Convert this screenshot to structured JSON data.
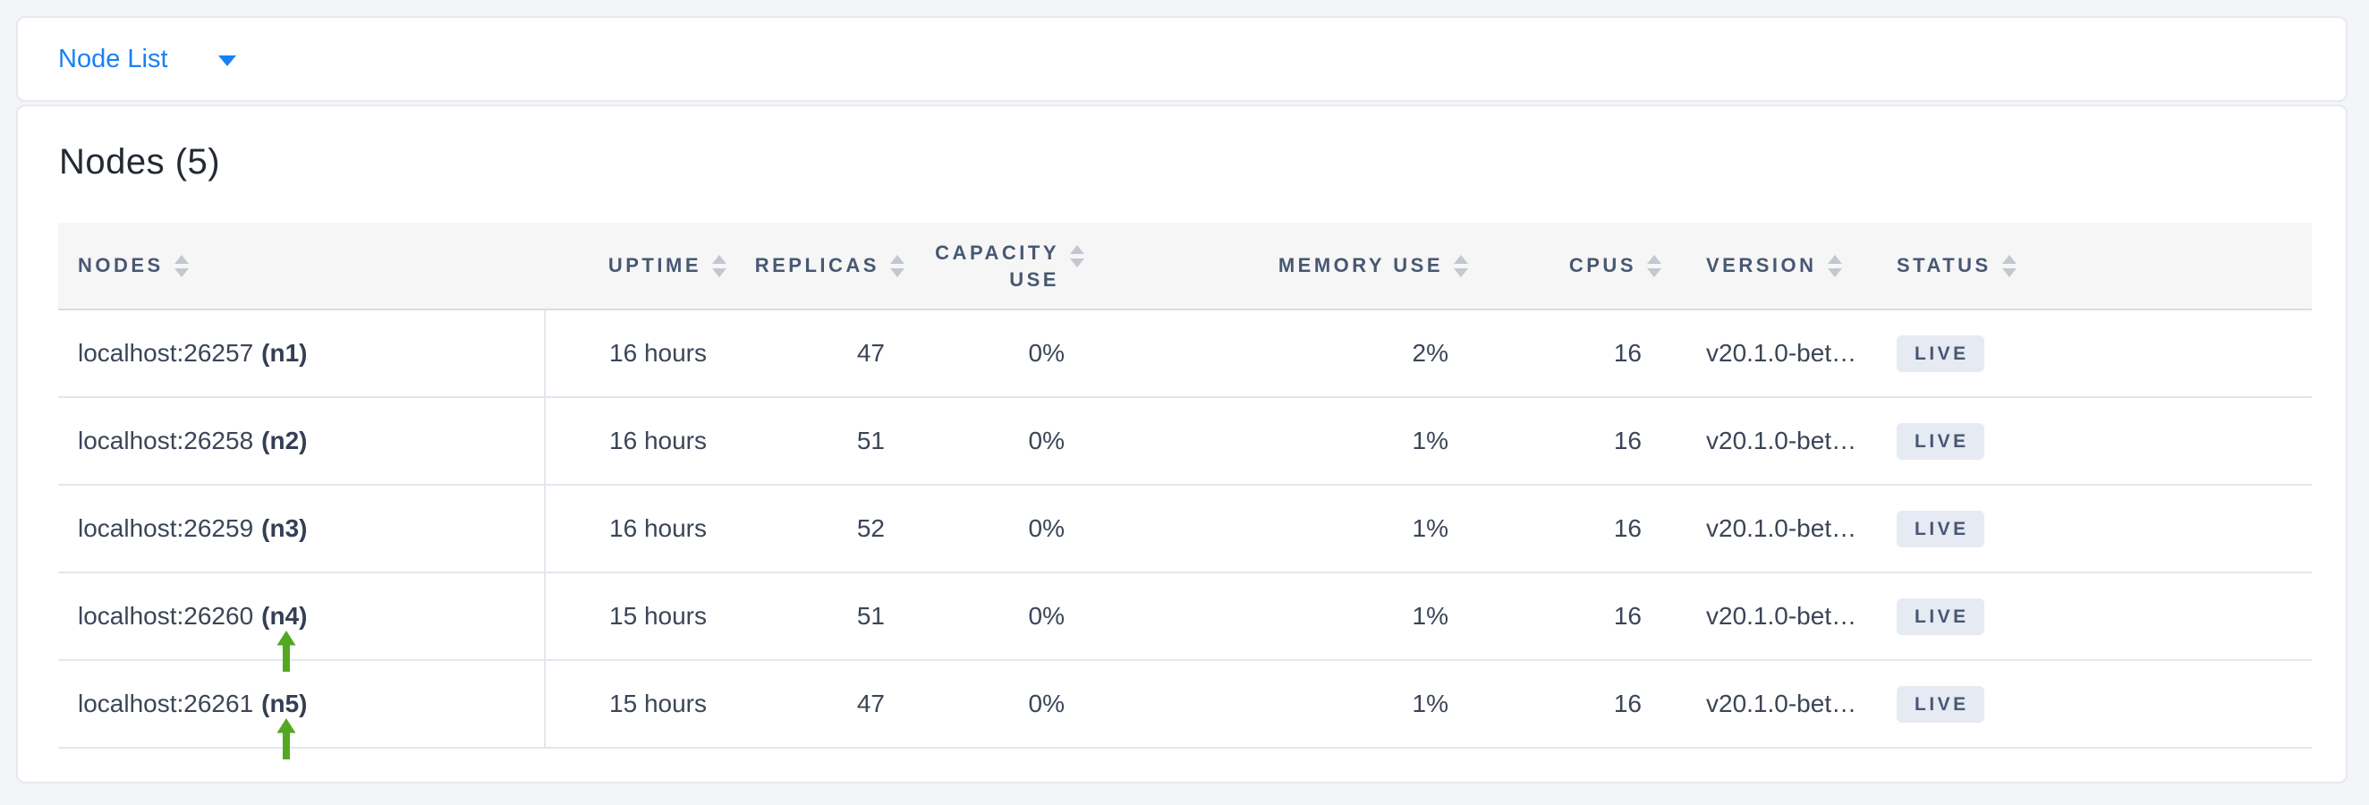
{
  "topbar": {
    "dropdown_label": "Node List"
  },
  "main": {
    "title": "Nodes (5)",
    "table": {
      "columns": [
        {
          "key": "nodes",
          "label": "NODES",
          "align": "left"
        },
        {
          "key": "uptime",
          "label": "UPTIME",
          "align": "right"
        },
        {
          "key": "replicas",
          "label": "REPLICAS",
          "align": "right"
        },
        {
          "key": "capacity_use",
          "label": "CAPACITY USE",
          "align": "right",
          "wrap": true
        },
        {
          "key": "memory_use",
          "label": "MEMORY USE",
          "align": "right"
        },
        {
          "key": "cpus",
          "label": "CPUS",
          "align": "right"
        },
        {
          "key": "version",
          "label": "VERSION",
          "align": "left"
        },
        {
          "key": "status",
          "label": "STATUS",
          "align": "left"
        }
      ],
      "rows": [
        {
          "address": "localhost:26257",
          "id": "(n1)",
          "uptime": "16 hours",
          "replicas": "47",
          "capacity_use": "0%",
          "memory_use": "2%",
          "cpus": "16",
          "version": "v20.1.0-bet…",
          "status": "LIVE",
          "annotated": false
        },
        {
          "address": "localhost:26258",
          "id": "(n2)",
          "uptime": "16 hours",
          "replicas": "51",
          "capacity_use": "0%",
          "memory_use": "1%",
          "cpus": "16",
          "version": "v20.1.0-bet…",
          "status": "LIVE",
          "annotated": false
        },
        {
          "address": "localhost:26259",
          "id": "(n3)",
          "uptime": "16 hours",
          "replicas": "52",
          "capacity_use": "0%",
          "memory_use": "1%",
          "cpus": "16",
          "version": "v20.1.0-bet…",
          "status": "LIVE",
          "annotated": false
        },
        {
          "address": "localhost:26260",
          "id": "(n4)",
          "uptime": "15 hours",
          "replicas": "51",
          "capacity_use": "0%",
          "memory_use": "1%",
          "cpus": "16",
          "version": "v20.1.0-bet…",
          "status": "LIVE",
          "annotated": true
        },
        {
          "address": "localhost:26261",
          "id": "(n5)",
          "uptime": "15 hours",
          "replicas": "47",
          "capacity_use": "0%",
          "memory_use": "1%",
          "cpus": "16",
          "version": "v20.1.0-bet…",
          "status": "LIVE",
          "annotated": true
        }
      ]
    }
  },
  "icons": {
    "dropdown_caret": "▼",
    "column_sort": "▲▼",
    "row_annotation_arrow": "⬆"
  },
  "colors": {
    "accent_blue": "#1a80f6",
    "annotation_green": "#53a821",
    "badge_bg": "#e6eaf3",
    "badge_text": "#475872",
    "header_text": "#475872",
    "cell_text": "#3b4557",
    "header_bg": "#f6f6f7",
    "row_border": "#e3e6ee",
    "page_bg": "#f4f5f9"
  }
}
